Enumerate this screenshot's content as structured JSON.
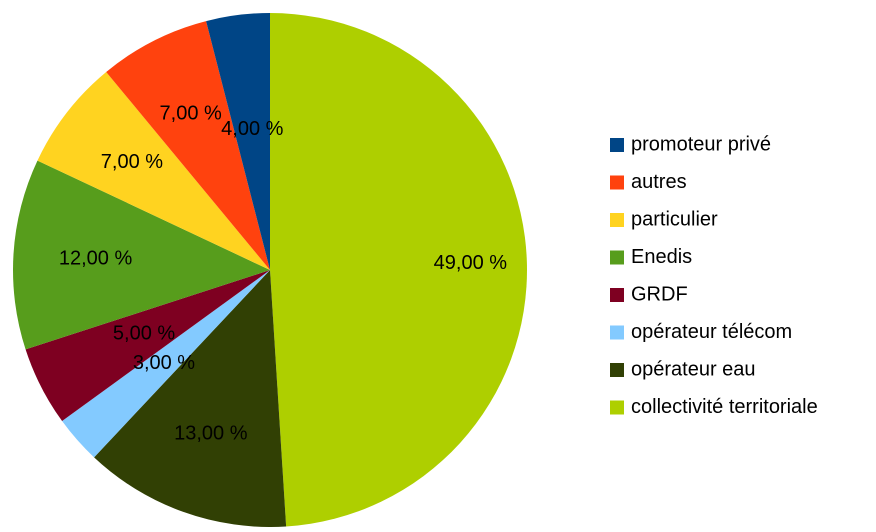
{
  "chart_data": {
    "type": "pie",
    "categories": [
      "promoteur privé",
      "autres",
      "particulier",
      "Enedis",
      "GRDF",
      "opérateur télécom",
      "opérateur eau",
      "collectivité territoriale"
    ],
    "values": [
      4,
      7,
      7,
      12,
      5,
      3,
      13,
      49
    ],
    "value_labels": [
      "4,00 %",
      "7,00 %",
      "7,00 %",
      "12,00 %",
      "5,00 %",
      "3,00 %",
      "13,00 %",
      "49,00 %"
    ],
    "colors": [
      "#004586",
      "#ff420e",
      "#ffd320",
      "#579d1c",
      "#7e0021",
      "#83caff",
      "#314004",
      "#aecf00"
    ],
    "legend": "right"
  }
}
